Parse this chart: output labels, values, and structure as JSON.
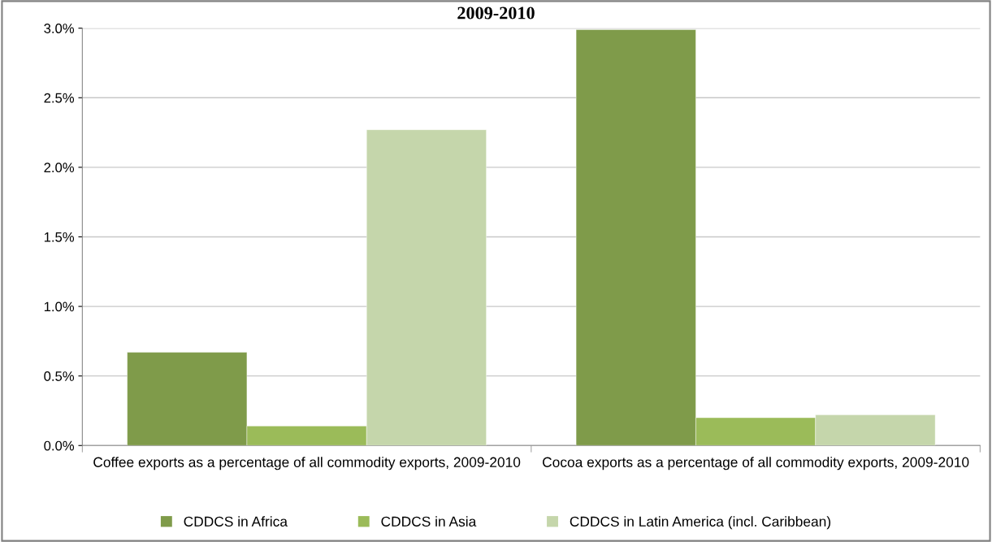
{
  "chart_data": {
    "type": "bar",
    "title": "2009-2010",
    "categories": [
      "Coffee exports as a percentage of all commodity exports, 2009-2010",
      "Cocoa exports as a percentage of all commodity exports, 2009-2010"
    ],
    "series": [
      {
        "name": "CDDCS in Africa",
        "color": "#7f9b4a",
        "values": [
          0.67,
          2.99
        ]
      },
      {
        "name": "CDDCS in Asia",
        "color": "#9bbb59",
        "values": [
          0.14,
          0.2
        ]
      },
      {
        "name": "CDDCS in Latin America (incl. Caribbean)",
        "color": "#c5d6ab",
        "values": [
          2.27,
          0.22
        ]
      }
    ],
    "ylim": [
      0,
      3.0
    ],
    "yticks": [
      {
        "value": 0,
        "label": "0.0%"
      },
      {
        "value": 0.5,
        "label": "0.5%"
      },
      {
        "value": 1.0,
        "label": "1.0%"
      },
      {
        "value": 1.5,
        "label": "1.5%"
      },
      {
        "value": 2.0,
        "label": "2.0%"
      },
      {
        "value": 2.5,
        "label": "2.5%"
      },
      {
        "value": 3.0,
        "label": "3.0%"
      }
    ],
    "grid": "y",
    "legend": "bottom"
  }
}
